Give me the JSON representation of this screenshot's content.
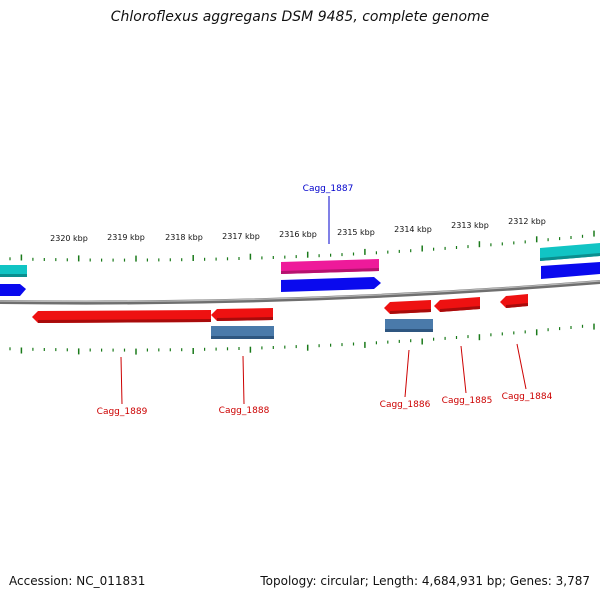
{
  "title": "Chloroflexus aggregans DSM 9485, complete genome",
  "footer": {
    "accession": "Accession: NC_011831",
    "summary": "Topology: circular; Length: 4,684,931 bp; Genes: 3,787"
  },
  "scale": {
    "labels": [
      "2320 kbp",
      "2319 kbp",
      "2318 kbp",
      "2317 kbp",
      "2316 kbp",
      "2315 kbp",
      "2314 kbp",
      "2313 kbp",
      "2312 kbp"
    ]
  },
  "genes": [
    {
      "id": "Cagg_1889",
      "label": "Cagg_1889",
      "strand": "minus",
      "color": "#ee1111"
    },
    {
      "id": "Cagg_1888",
      "label": "Cagg_1888",
      "strand": "minus",
      "color": "#ee1111"
    },
    {
      "id": "Cagg_1887",
      "label": "Cagg_1887",
      "strand": "plus",
      "color": "#ee1a9a"
    },
    {
      "id": "Cagg_1886",
      "label": "Cagg_1886",
      "strand": "minus",
      "color": "#ee1111"
    },
    {
      "id": "Cagg_1885",
      "label": "Cagg_1885",
      "strand": "minus",
      "color": "#ee1111"
    },
    {
      "id": "Cagg_1884",
      "label": "Cagg_1884",
      "strand": "minus",
      "color": "#ee1111"
    }
  ],
  "colors": {
    "tick": "#1a7a1a",
    "backbone": "#8a8a8a",
    "cds_plus": "#0a0aee",
    "cds_minus": "#ee1111",
    "gene_plus": "#ee1a9a",
    "gene_teal": "#11c4c4",
    "gene_steel": "#4a7aaa",
    "label_plus": "#0000cc",
    "label_minus": "#cc0000"
  }
}
